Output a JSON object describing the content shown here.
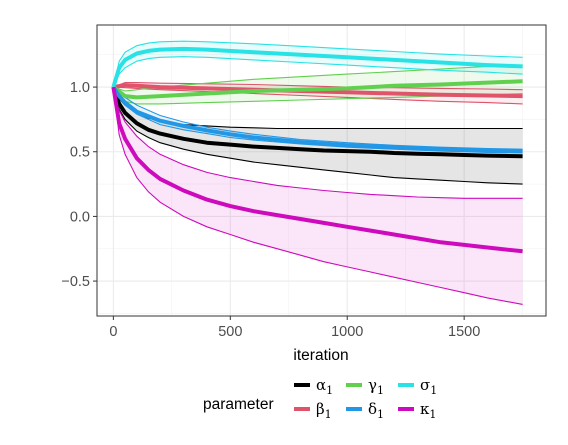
{
  "chart_data": {
    "type": "line",
    "xlabel": "iteration",
    "ylabel": "",
    "xlim": [
      -70,
      1850
    ],
    "ylim": [
      -0.77,
      1.48
    ],
    "x_ticks": [
      0,
      500,
      1000,
      1500
    ],
    "x_tick_labels": [
      "0",
      "500",
      "1000",
      "1500"
    ],
    "y_ticks": [
      -0.5,
      0.0,
      0.5,
      1.0
    ],
    "y_tick_labels": [
      "−0.5",
      "0.0",
      "0.5",
      "1.0"
    ],
    "grid": true,
    "legend": {
      "title": "parameter",
      "position": "bottom",
      "entries": [
        {
          "label": "α",
          "subscript": "1",
          "color": "#000000"
        },
        {
          "label": "β",
          "subscript": "1",
          "color": "#df536b"
        },
        {
          "label": "γ",
          "subscript": "1",
          "color": "#61d04f"
        },
        {
          "label": "δ",
          "subscript": "1",
          "color": "#2297e6"
        },
        {
          "label": "σ",
          "subscript": "1",
          "color": "#28e2e5"
        },
        {
          "label": "κ",
          "subscript": "1",
          "color": "#cd0bbc"
        }
      ]
    },
    "series": [
      {
        "name": "α₁",
        "color": "#000000",
        "x": [
          0,
          25,
          50,
          100,
          150,
          200,
          300,
          400,
          500,
          600,
          700,
          800,
          900,
          1000,
          1100,
          1200,
          1300,
          1400,
          1500,
          1600,
          1750
        ],
        "mean": [
          1.0,
          0.87,
          0.8,
          0.72,
          0.67,
          0.64,
          0.6,
          0.57,
          0.555,
          0.54,
          0.53,
          0.52,
          0.51,
          0.505,
          0.5,
          0.49,
          0.485,
          0.48,
          0.475,
          0.47,
          0.465
        ],
        "upper": [
          1.0,
          0.91,
          0.86,
          0.8,
          0.76,
          0.74,
          0.71,
          0.7,
          0.69,
          0.685,
          0.68,
          0.68,
          0.68,
          0.68,
          0.68,
          0.68,
          0.68,
          0.68,
          0.68,
          0.68,
          0.68
        ],
        "lower": [
          1.0,
          0.83,
          0.75,
          0.66,
          0.61,
          0.57,
          0.52,
          0.48,
          0.45,
          0.42,
          0.4,
          0.38,
          0.36,
          0.34,
          0.32,
          0.3,
          0.29,
          0.28,
          0.27,
          0.26,
          0.25
        ]
      },
      {
        "name": "β₁",
        "color": "#df536b",
        "x": [
          0,
          50,
          100,
          200,
          400,
          600,
          800,
          1000,
          1200,
          1400,
          1600,
          1750
        ],
        "mean": [
          1.0,
          1.015,
          1.01,
          1.0,
          0.99,
          0.98,
          0.97,
          0.96,
          0.95,
          0.94,
          0.935,
          0.93
        ],
        "upper": [
          1.0,
          1.035,
          1.035,
          1.03,
          1.025,
          1.02,
          1.01,
          1.0,
          0.995,
          0.99,
          0.985,
          0.98
        ],
        "lower": [
          1.0,
          0.995,
          0.99,
          0.98,
          0.965,
          0.95,
          0.935,
          0.92,
          0.905,
          0.89,
          0.88,
          0.87
        ]
      },
      {
        "name": "γ₁",
        "color": "#61d04f",
        "x": [
          0,
          50,
          100,
          200,
          400,
          600,
          800,
          1000,
          1200,
          1400,
          1600,
          1750
        ],
        "mean": [
          1.0,
          0.93,
          0.92,
          0.93,
          0.95,
          0.97,
          0.98,
          0.99,
          1.01,
          1.02,
          1.035,
          1.045
        ],
        "upper": [
          1.0,
          0.97,
          0.98,
          1.0,
          1.03,
          1.06,
          1.08,
          1.1,
          1.12,
          1.14,
          1.16,
          1.17
        ],
        "lower": [
          1.0,
          0.89,
          0.87,
          0.87,
          0.88,
          0.89,
          0.9,
          0.91,
          0.92,
          0.93,
          0.94,
          0.95
        ]
      },
      {
        "name": "δ₁",
        "color": "#2297e6",
        "x": [
          0,
          25,
          50,
          100,
          200,
          300,
          400,
          500,
          600,
          800,
          1000,
          1200,
          1400,
          1600,
          1750
        ],
        "mean": [
          1.0,
          0.93,
          0.88,
          0.81,
          0.74,
          0.7,
          0.665,
          0.635,
          0.61,
          0.575,
          0.55,
          0.535,
          0.52,
          0.51,
          0.505
        ],
        "upper": [
          1.0,
          0.96,
          0.92,
          0.86,
          0.78,
          0.73,
          0.69,
          0.66,
          0.635,
          0.595,
          0.57,
          0.55,
          0.535,
          0.525,
          0.52
        ],
        "lower": [
          1.0,
          0.92,
          0.86,
          0.79,
          0.71,
          0.67,
          0.64,
          0.61,
          0.59,
          0.56,
          0.535,
          0.52,
          0.505,
          0.495,
          0.49
        ]
      },
      {
        "name": "σ₁",
        "color": "#28e2e5",
        "x": [
          0,
          25,
          50,
          100,
          150,
          200,
          300,
          400,
          600,
          800,
          1000,
          1200,
          1400,
          1600,
          1750
        ],
        "mean": [
          1.0,
          1.15,
          1.21,
          1.26,
          1.28,
          1.29,
          1.295,
          1.29,
          1.27,
          1.25,
          1.23,
          1.21,
          1.19,
          1.17,
          1.16
        ],
        "upper": [
          1.0,
          1.2,
          1.27,
          1.32,
          1.34,
          1.35,
          1.355,
          1.35,
          1.335,
          1.315,
          1.295,
          1.275,
          1.255,
          1.24,
          1.23
        ],
        "lower": [
          1.0,
          1.1,
          1.15,
          1.2,
          1.22,
          1.23,
          1.235,
          1.23,
          1.21,
          1.19,
          1.17,
          1.15,
          1.13,
          1.115,
          1.1
        ]
      },
      {
        "name": "κ₁",
        "color": "#cd0bbc",
        "x": [
          0,
          25,
          50,
          100,
          150,
          200,
          300,
          400,
          500,
          600,
          700,
          800,
          900,
          1000,
          1100,
          1200,
          1300,
          1400,
          1500,
          1600,
          1750
        ],
        "mean": [
          1.0,
          0.72,
          0.6,
          0.45,
          0.36,
          0.29,
          0.2,
          0.13,
          0.08,
          0.04,
          0.01,
          -0.02,
          -0.05,
          -0.08,
          -0.11,
          -0.14,
          -0.17,
          -0.2,
          -0.22,
          -0.24,
          -0.27
        ],
        "upper": [
          1.0,
          0.82,
          0.73,
          0.62,
          0.54,
          0.48,
          0.4,
          0.34,
          0.3,
          0.27,
          0.24,
          0.22,
          0.2,
          0.185,
          0.17,
          0.16,
          0.15,
          0.145,
          0.14,
          0.14,
          0.14
        ],
        "lower": [
          1.0,
          0.63,
          0.48,
          0.3,
          0.19,
          0.11,
          0.0,
          -0.08,
          -0.14,
          -0.2,
          -0.25,
          -0.3,
          -0.35,
          -0.39,
          -0.43,
          -0.47,
          -0.51,
          -0.55,
          -0.59,
          -0.63,
          -0.68
        ]
      }
    ]
  }
}
